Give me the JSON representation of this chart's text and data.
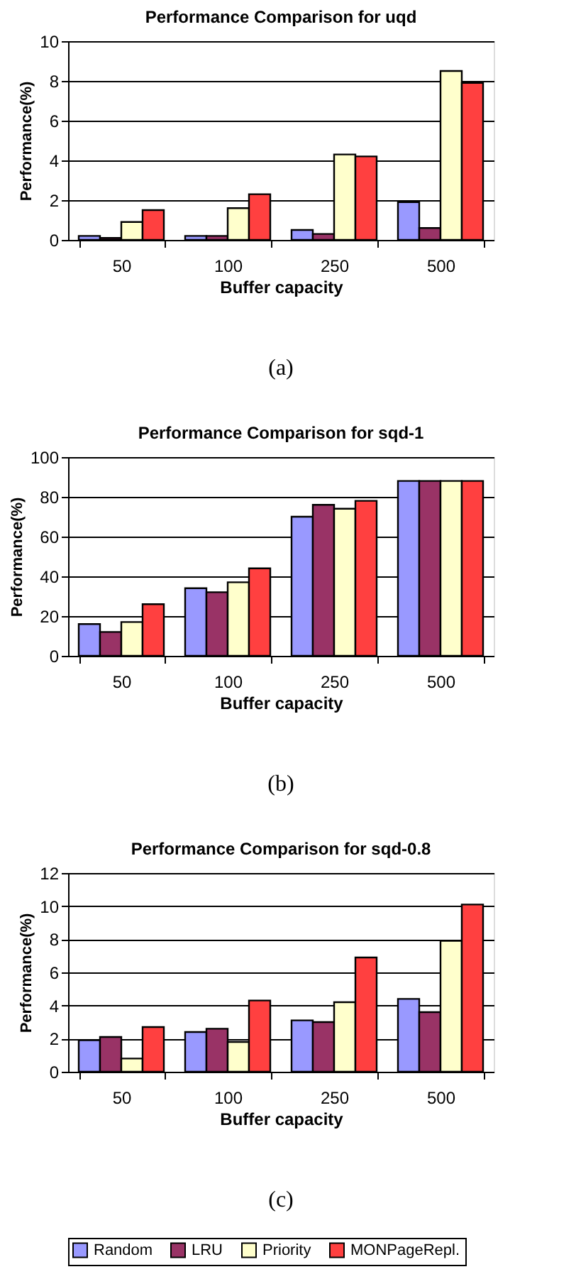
{
  "chart_data": [
    {
      "type": "bar",
      "title": "Performance Comparison for uqd",
      "xlabel": "Buffer capacity",
      "ylabel": "Performance(%)",
      "categories": [
        "50",
        "100",
        "250",
        "500"
      ],
      "ylim": [
        0,
        10
      ],
      "yticks": [
        0,
        2,
        4,
        6,
        8,
        10
      ],
      "grid": "y",
      "legend": "bottom",
      "annotations": [
        "(a)"
      ],
      "series": [
        {
          "name": "Random",
          "color": "#9999ff",
          "values": [
            0.2,
            0.2,
            0.5,
            1.9
          ]
        },
        {
          "name": "LRU",
          "color": "#993366",
          "values": [
            0.1,
            0.2,
            0.3,
            0.6
          ]
        },
        {
          "name": "Priority",
          "color": "#ffffcc",
          "values": [
            0.9,
            1.6,
            4.3,
            8.5
          ]
        },
        {
          "name": "MONPageRepl.",
          "color": "#ff4040",
          "values": [
            1.5,
            2.3,
            4.2,
            7.9
          ]
        }
      ]
    },
    {
      "type": "bar",
      "title": "Performance Comparison for sqd-1",
      "xlabel": "Buffer capacity",
      "ylabel": "Performance(%)",
      "categories": [
        "50",
        "100",
        "250",
        "500"
      ],
      "ylim": [
        0,
        100
      ],
      "yticks": [
        0,
        20,
        40,
        60,
        80,
        100
      ],
      "grid": "y",
      "legend": "bottom",
      "annotations": [
        "(b)"
      ],
      "series": [
        {
          "name": "Random",
          "color": "#9999ff",
          "values": [
            16,
            34,
            70,
            88
          ]
        },
        {
          "name": "LRU",
          "color": "#993366",
          "values": [
            12,
            32,
            76,
            88
          ]
        },
        {
          "name": "Priority",
          "color": "#ffffcc",
          "values": [
            17,
            37,
            74,
            88
          ]
        },
        {
          "name": "MONPageRepl.",
          "color": "#ff4040",
          "values": [
            26,
            44,
            78,
            88
          ]
        }
      ]
    },
    {
      "type": "bar",
      "title": "Performance Comparison for sqd-0.8",
      "xlabel": "Buffer capacity",
      "ylabel": "Performance(%)",
      "categories": [
        "50",
        "100",
        "250",
        "500"
      ],
      "ylim": [
        0,
        12
      ],
      "yticks": [
        0,
        2,
        4,
        6,
        8,
        10,
        12
      ],
      "grid": "y",
      "legend": "bottom",
      "annotations": [
        "(c)"
      ],
      "series": [
        {
          "name": "Random",
          "color": "#9999ff",
          "values": [
            1.9,
            2.4,
            3.1,
            4.4
          ]
        },
        {
          "name": "LRU",
          "color": "#993366",
          "values": [
            2.1,
            2.6,
            3.0,
            3.6
          ]
        },
        {
          "name": "Priority",
          "color": "#ffffcc",
          "values": [
            0.8,
            1.8,
            4.2,
            7.9
          ]
        },
        {
          "name": "MONPageRepl.",
          "color": "#ff4040",
          "values": [
            2.7,
            4.3,
            6.9,
            10.1
          ]
        }
      ]
    }
  ]
}
